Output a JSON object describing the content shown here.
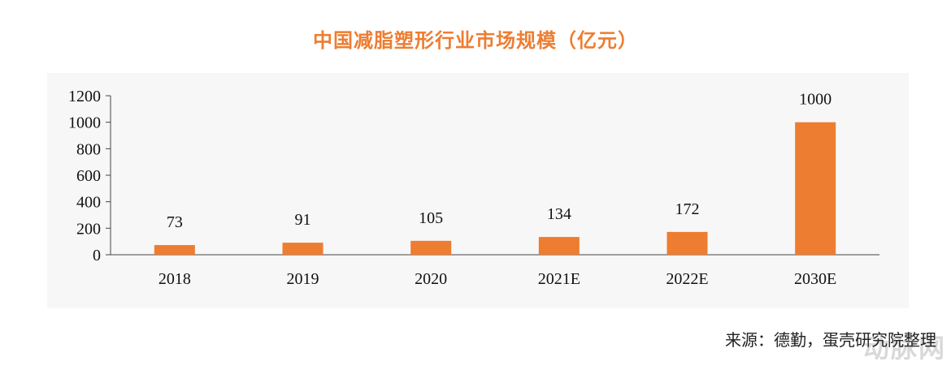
{
  "title": "中国减脂塑形行业市场规模（亿元）",
  "source": "来源：德勤，蛋壳研究院整理",
  "watermark": "动脉网",
  "colors": {
    "bar": "#ED7D31",
    "title": "#ED7D31",
    "axis": "#444444"
  },
  "chart_data": {
    "type": "bar",
    "title": "中国减脂塑形行业市场规模（亿元）",
    "categories": [
      "2018",
      "2019",
      "2020",
      "2021E",
      "2022E",
      "2030E"
    ],
    "values": [
      73,
      91,
      105,
      134,
      172,
      1000
    ],
    "data_labels": [
      "73",
      "91",
      "105",
      "134",
      "172",
      "1000"
    ],
    "yticks": [
      0,
      200,
      400,
      600,
      800,
      1000,
      1200
    ],
    "ylim": [
      0,
      1200
    ],
    "grid": false,
    "legend": "none"
  }
}
